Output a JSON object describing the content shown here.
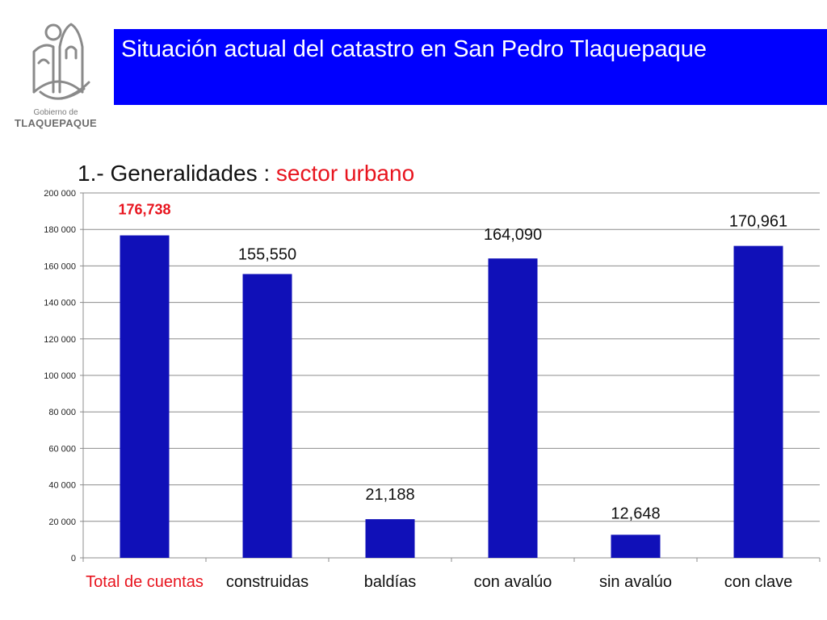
{
  "logo": {
    "icon": "tlaquepaque-crest-icon",
    "small_text": "Gobierno de",
    "big_text": "TLAQUEPAQUE"
  },
  "header": {
    "title": "Situación actual del catastro en San Pedro Tlaquepaque",
    "band_color": "#0000ff"
  },
  "subtitle": {
    "prefix": "1.-  Generalidades : ",
    "highlight": "sector urbano"
  },
  "colors": {
    "bar": "#1010b8",
    "highlight": "#e8141e",
    "grid": "#8c8c8c"
  },
  "chart_data": {
    "type": "bar",
    "categories": [
      "Total de cuentas",
      "construidas",
      "baldías",
      "con avalúo",
      "sin avalúo",
      "con clave"
    ],
    "values": [
      176738,
      155550,
      21188,
      164090,
      12648,
      170961
    ],
    "value_labels": [
      "176,738",
      "155,550",
      "21,188",
      "164,090",
      "12,648",
      "170,961"
    ],
    "highlight_index": 0,
    "ylim": [
      0,
      200000
    ],
    "yticks": [
      0,
      20000,
      40000,
      60000,
      80000,
      100000,
      120000,
      140000,
      160000,
      180000,
      200000
    ],
    "ytick_labels": [
      "0",
      "20 000",
      "40 000",
      "60 000",
      "80 000",
      "100 000",
      "120 000",
      "140 000",
      "160 000",
      "180 000",
      "200 000"
    ],
    "grid": true,
    "legend": "none"
  }
}
